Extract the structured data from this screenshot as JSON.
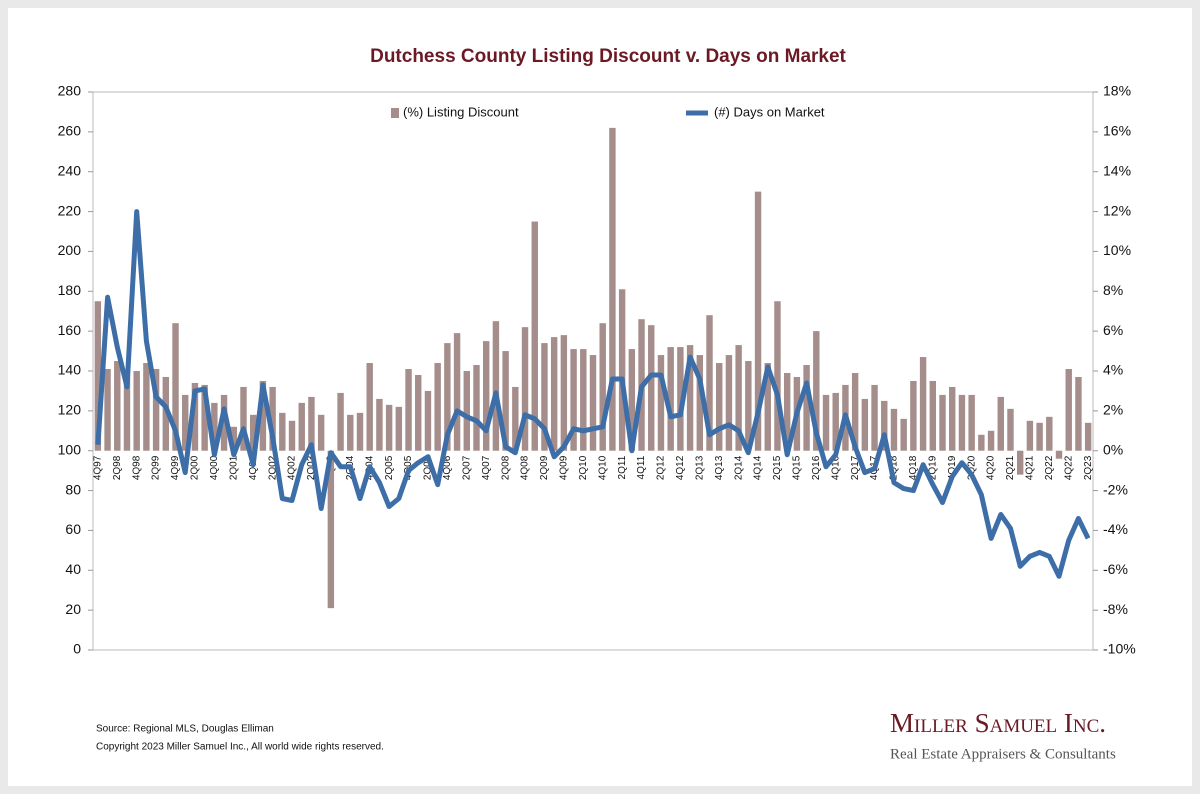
{
  "chart_data": {
    "type": "combo",
    "title": "Dutchess County Listing Discount v. Days on Market",
    "categories": [
      "4Q97",
      null,
      "2Q98",
      null,
      "4Q98",
      null,
      "2Q99",
      null,
      "4Q99",
      null,
      "2Q00",
      null,
      "4Q00",
      null,
      "2Q01",
      null,
      "4Q01",
      null,
      "2Q02",
      null,
      "4Q02",
      null,
      "2Q03",
      null,
      "4Q03",
      null,
      "2Q04",
      null,
      "4Q04",
      null,
      "2Q05",
      null,
      "4Q05",
      null,
      "2Q06",
      null,
      "4Q06",
      null,
      "2Q07",
      null,
      "4Q07",
      null,
      "2Q08",
      null,
      "4Q08",
      null,
      "2Q09",
      null,
      "4Q09",
      null,
      "2Q10",
      null,
      "4Q10",
      null,
      "2Q11",
      null,
      "4Q11",
      null,
      "2Q12",
      null,
      "4Q12",
      null,
      "2Q13",
      null,
      "4Q13",
      null,
      "2Q14",
      null,
      "4Q14",
      null,
      "2Q15",
      null,
      "4Q15",
      null,
      "2Q16",
      null,
      "4Q16",
      null,
      "2Q17",
      null,
      "4Q17",
      null,
      "2Q18",
      null,
      "4Q18",
      null,
      "2Q19",
      null,
      "4Q19",
      null,
      "2Q20",
      null,
      "4Q20",
      null,
      "2Q21",
      null,
      "4Q21",
      null,
      "2Q22",
      null,
      "4Q22",
      null,
      "2Q23"
    ],
    "series": [
      {
        "name": "(%) Listing Discount",
        "type": "bar",
        "axis": "y2",
        "color": "#a48d8a",
        "values": [
          7.5,
          4.1,
          4.5,
          4.0,
          4.0,
          4.4,
          4.1,
          3.7,
          6.4,
          2.8,
          3.4,
          3.3,
          2.4,
          2.8,
          1.2,
          3.2,
          1.8,
          3.5,
          3.2,
          1.9,
          1.5,
          2.4,
          2.7,
          1.8,
          -7.9,
          2.9,
          1.8,
          1.9,
          4.4,
          2.6,
          2.3,
          2.2,
          4.1,
          3.8,
          3.0,
          4.4,
          5.4,
          5.9,
          4.0,
          4.3,
          5.5,
          6.5,
          5.0,
          3.2,
          6.2,
          11.5,
          5.4,
          5.7,
          5.8,
          5.1,
          5.1,
          4.8,
          6.4,
          16.2,
          8.1,
          5.1,
          6.6,
          6.3,
          4.8,
          5.2,
          5.2,
          5.3,
          4.8,
          6.8,
          4.4,
          4.8,
          5.3,
          4.5,
          13.0,
          4.4,
          7.5,
          3.9,
          3.7,
          4.3,
          6.0,
          2.8,
          2.9,
          3.3,
          3.9,
          2.6,
          3.3,
          2.5,
          2.1,
          1.6,
          3.5,
          4.7,
          3.5,
          2.8,
          3.2,
          2.8,
          2.8,
          0.8,
          1.0,
          2.7,
          2.1,
          -1.2,
          1.5,
          1.4,
          1.7,
          -0.4,
          4.1,
          3.7,
          1.4
        ]
      },
      {
        "name": "(#) Days on Market",
        "type": "line",
        "axis": "y",
        "color": "#3d6ea7",
        "values": [
          103,
          177,
          152,
          132,
          220,
          155,
          127,
          122,
          110,
          89,
          130,
          131,
          98,
          121,
          98,
          111,
          93,
          133,
          107,
          76,
          75,
          93,
          103,
          71,
          99,
          92,
          92,
          76,
          92,
          84,
          72,
          76,
          90,
          94,
          97,
          83,
          108,
          120,
          117,
          115,
          110,
          129,
          102,
          99,
          118,
          116,
          111,
          97,
          102,
          111,
          110,
          111,
          112,
          136,
          136,
          100,
          132,
          138,
          138,
          117,
          118,
          147,
          136,
          108,
          111,
          113,
          110,
          99,
          119,
          142,
          128,
          98,
          119,
          134,
          109,
          92,
          98,
          118,
          102,
          89,
          91,
          108,
          84,
          81,
          80,
          93,
          83,
          74,
          87,
          94,
          88,
          78,
          56,
          68,
          61,
          42,
          47,
          49,
          47,
          37,
          55,
          66,
          56
        ]
      }
    ],
    "ylim": [
      0,
      280
    ],
    "yticks": [
      0,
      20,
      40,
      60,
      80,
      100,
      120,
      140,
      160,
      180,
      200,
      220,
      240,
      260,
      280
    ],
    "y2lim": [
      -10,
      18
    ],
    "y2ticks": [
      {
        "value": -10,
        "label": "-10%"
      },
      {
        "value": -8,
        "label": "-8%"
      },
      {
        "value": -6,
        "label": "-6%"
      },
      {
        "value": -4,
        "label": "-4%"
      },
      {
        "value": -2,
        "label": "-2%"
      },
      {
        "value": 0,
        "label": "0%"
      },
      {
        "value": 2,
        "label": "2%"
      },
      {
        "value": 4,
        "label": "4%"
      },
      {
        "value": 6,
        "label": "6%"
      },
      {
        "value": 8,
        "label": "8%"
      },
      {
        "value": 10,
        "label": "10%"
      },
      {
        "value": 12,
        "label": "12%"
      },
      {
        "value": 14,
        "label": "14%"
      },
      {
        "value": 16,
        "label": "16%"
      },
      {
        "value": 18,
        "label": "18%"
      }
    ],
    "grid": false,
    "legend": "top"
  },
  "footer": {
    "source": "Source: Regional MLS, Douglas Elliman",
    "copyright": "Copyright 2023 Miller Samuel Inc., All world wide rights reserved."
  },
  "logo": {
    "name": "Miller Samuel Inc.",
    "tagline": "Real Estate Appraisers & Consultants"
  }
}
